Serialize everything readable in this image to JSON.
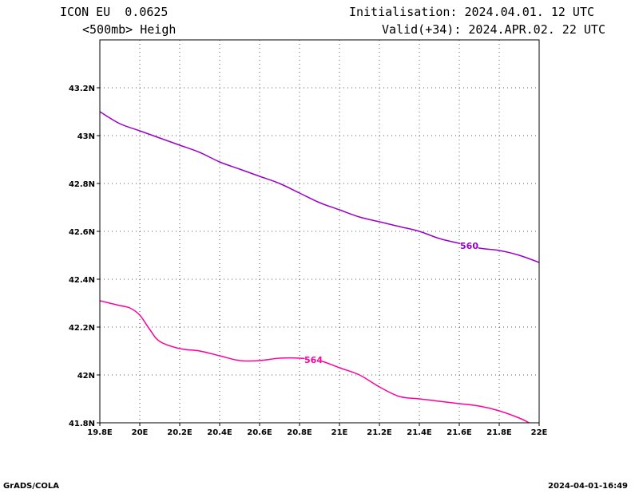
{
  "header": {
    "model": "ICON EU  0.0625",
    "field": "<500mb> Heigh",
    "init": "Initialisation: 2024.04.01. 12 UTC",
    "valid": "Valid(+34): 2024.APR.02. 22 UTC"
  },
  "footer": {
    "left": "GrADS/COLA",
    "right": "2024-04-01-16:49"
  },
  "chart_data": {
    "type": "line",
    "xlim": [
      19.8,
      22.0
    ],
    "ylim": [
      41.8,
      43.4
    ],
    "grid": true,
    "x_ticks": [
      19.8,
      20.0,
      20.2,
      20.4,
      20.6,
      20.8,
      21.0,
      21.2,
      21.4,
      21.6,
      21.8,
      22.0
    ],
    "x_tick_labels": [
      "19.8E",
      "20E",
      "20.2E",
      "20.4E",
      "20.6E",
      "20.8E",
      "21E",
      "21.2E",
      "21.4E",
      "21.6E",
      "21.8E",
      "22E"
    ],
    "y_ticks": [
      41.8,
      42.0,
      42.2,
      42.4,
      42.6,
      42.8,
      43.0,
      43.2
    ],
    "y_tick_labels": [
      "41.8N",
      "42N",
      "42.2N",
      "42.4N",
      "42.6N",
      "42.8N",
      "43N",
      "43.2N"
    ],
    "series": [
      {
        "name": "560",
        "color": "#9900cc",
        "label_at": 21.65,
        "x": [
          19.8,
          19.9,
          20.0,
          20.1,
          20.2,
          20.3,
          20.4,
          20.5,
          20.6,
          20.7,
          20.8,
          20.9,
          21.0,
          21.1,
          21.2,
          21.3,
          21.4,
          21.5,
          21.6,
          21.7,
          21.8,
          21.9,
          22.0
        ],
        "y": [
          43.1,
          43.05,
          43.02,
          42.99,
          42.96,
          42.93,
          42.89,
          42.86,
          42.83,
          42.8,
          42.76,
          42.72,
          42.69,
          42.66,
          42.64,
          42.62,
          42.6,
          42.57,
          42.55,
          42.53,
          42.52,
          42.5,
          42.47
        ]
      },
      {
        "name": "564",
        "color": "#ff0099",
        "label_at": 20.87,
        "x": [
          19.8,
          19.9,
          19.95,
          20.0,
          20.05,
          20.1,
          20.2,
          20.3,
          20.4,
          20.5,
          20.6,
          20.7,
          20.8,
          20.9,
          21.0,
          21.1,
          21.2,
          21.3,
          21.4,
          21.5,
          21.6,
          21.7,
          21.8,
          21.9,
          21.95
        ],
        "y": [
          42.31,
          42.29,
          42.28,
          42.25,
          42.19,
          42.14,
          42.11,
          42.1,
          42.08,
          42.06,
          42.06,
          42.07,
          42.07,
          42.06,
          42.03,
          42.0,
          41.95,
          41.91,
          41.9,
          41.89,
          41.88,
          41.87,
          41.85,
          41.82,
          41.8
        ]
      }
    ]
  }
}
